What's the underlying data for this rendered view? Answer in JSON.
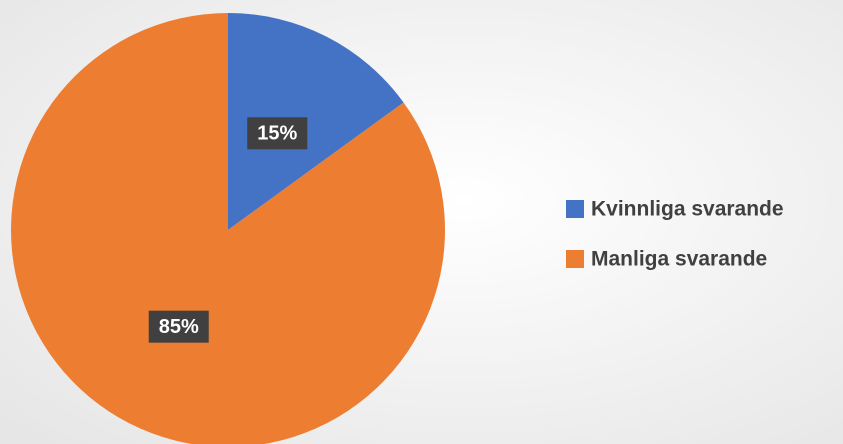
{
  "chart_data": {
    "type": "pie",
    "categories": [
      "Kvinnliga svarande",
      "Manliga svarande"
    ],
    "values": [
      15,
      85
    ],
    "value_labels": [
      "15%",
      "85%"
    ],
    "colors": [
      "#4472c4",
      "#ed7d31"
    ],
    "legend": "right"
  }
}
